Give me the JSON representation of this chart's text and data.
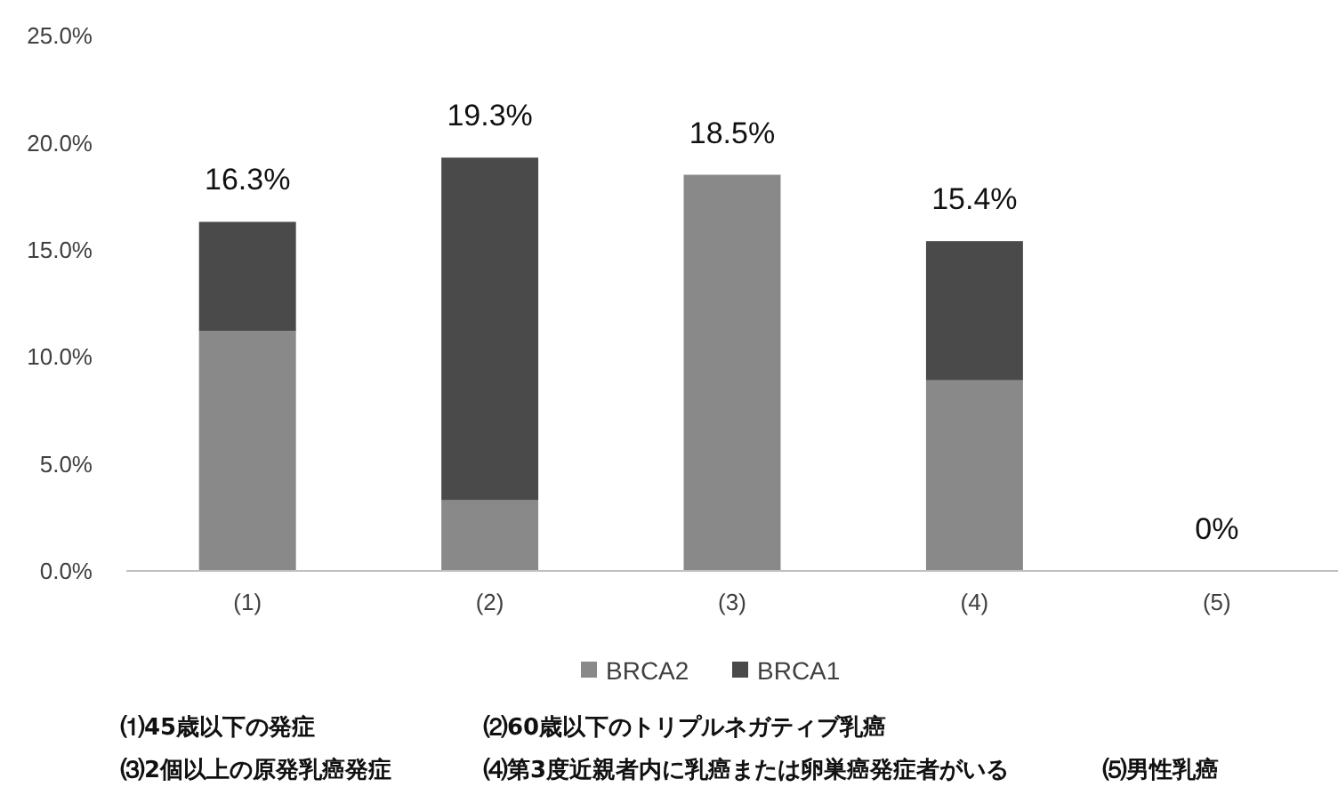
{
  "chart_data": {
    "type": "bar",
    "stacked": true,
    "categories": [
      "(1)",
      "(2)",
      "(3)",
      "(4)",
      "(5)"
    ],
    "series": [
      {
        "name": "BRCA2",
        "color": "#898989",
        "values": [
          11.2,
          3.3,
          18.5,
          8.9,
          0
        ]
      },
      {
        "name": "BRCA1",
        "color": "#4a4a4a",
        "values": [
          5.1,
          16.0,
          0,
          6.5,
          0
        ]
      }
    ],
    "totals": [
      "16.3%",
      "19.3%",
      "18.5%",
      "15.4%",
      "0%"
    ],
    "ylim": [
      0,
      25
    ],
    "yticks": [
      {
        "value": 0,
        "label": "0.0%"
      },
      {
        "value": 5,
        "label": "5.0%"
      },
      {
        "value": 10,
        "label": "10.0%"
      },
      {
        "value": 15,
        "label": "15.0%"
      },
      {
        "value": 20,
        "label": "20.0%"
      },
      {
        "value": 25,
        "label": "25.0%"
      }
    ],
    "grid": false,
    "legend": "bottom",
    "annotations": [
      "⑴45歳以下の発症",
      "⑵60歳以下のトリプルネガティブ乳癌",
      "⑶2個以上の原発乳癌発症",
      "⑷第3度近親者内に乳癌または卵巣癌発症者がいる",
      "⑸男性乳癌"
    ]
  }
}
